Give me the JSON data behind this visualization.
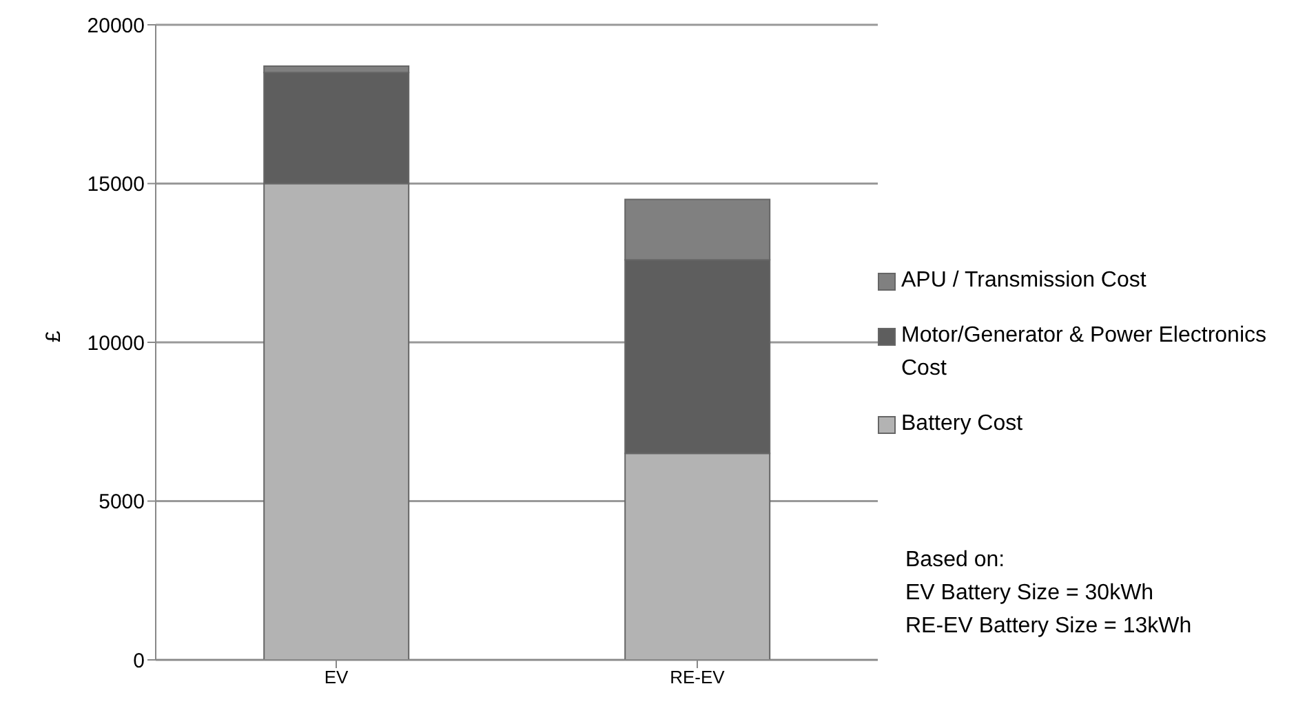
{
  "chart_data": {
    "type": "bar",
    "stacked": true,
    "categories": [
      "EV",
      "RE-EV"
    ],
    "ylabel": "£",
    "series": [
      {
        "name": "Battery Cost",
        "color": "#b3b3b3",
        "values": [
          15000,
          6500
        ]
      },
      {
        "name": "Motor/Generator & Power Electronics Cost",
        "color": "#5e5e5e",
        "values": [
          3500,
          6100
        ]
      },
      {
        "name": "APU / Transmission  Cost",
        "color": "#808080",
        "values": [
          200,
          1900
        ]
      }
    ],
    "ylim": [
      0,
      20000
    ],
    "yticks": [
      0,
      5000,
      10000,
      15000,
      20000
    ],
    "grid": "y",
    "legend": "right",
    "annotations": [
      "Based on:",
      "EV Battery Size = 30kWh",
      "RE-EV Battery Size = 13kWh"
    ]
  }
}
